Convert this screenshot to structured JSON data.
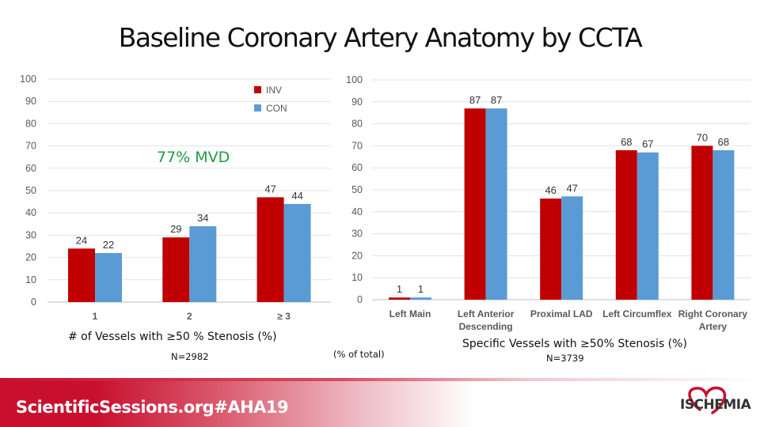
{
  "title": "Baseline Coronary Artery Anatomy by CCTA",
  "annotation": "77% MVD",
  "left_caption": "# of Vessels with ≥50 % Stenosis (%)",
  "left_n": "N=2982",
  "middle_caption": "(% of total)",
  "right_caption": "Specific Vessels with ≥50% Stenosis (%)",
  "right_n": "N=3739",
  "footer": "ScientificSessions.org#AHA19",
  "logo": "ISCHEMIA",
  "colors": {
    "inv": "#c00000",
    "con": "#5b9bd5",
    "accent": "#1f9d45",
    "footer_red": "#c8102e"
  },
  "chart_data": [
    {
      "type": "bar",
      "categories": [
        "1",
        "2",
        "≥ 3"
      ],
      "series": [
        {
          "name": "INV",
          "values": [
            24,
            29,
            47
          ]
        },
        {
          "name": "CON",
          "values": [
            22,
            34,
            44
          ]
        }
      ],
      "yticks": [
        "0",
        "10",
        "20",
        "30",
        "40",
        "50",
        "60",
        "70",
        "80",
        "90",
        "100"
      ],
      "ylim": [
        0,
        100
      ],
      "grid": true,
      "legend": "top-right"
    },
    {
      "type": "bar",
      "categories": [
        "Left Main",
        "Left Anterior Descending",
        "Proximal LAD",
        "Left Circumflex",
        "Right Coronary Artery"
      ],
      "category_lines": [
        [
          "Left Main"
        ],
        [
          "Left Anterior",
          "Descending"
        ],
        [
          "Proximal LAD"
        ],
        [
          "Left Circumflex"
        ],
        [
          "Right Coronary",
          "Artery"
        ]
      ],
      "series": [
        {
          "name": "INV",
          "values": [
            1,
            87,
            46,
            68,
            70
          ]
        },
        {
          "name": "CON",
          "values": [
            1,
            87,
            47,
            67,
            68
          ]
        }
      ],
      "yticks": [
        "0",
        "10",
        "20",
        "30",
        "40",
        "50",
        "60",
        "70",
        "80",
        "90",
        "100"
      ],
      "ylim": [
        0,
        100
      ],
      "grid": true,
      "legend": "none"
    }
  ]
}
